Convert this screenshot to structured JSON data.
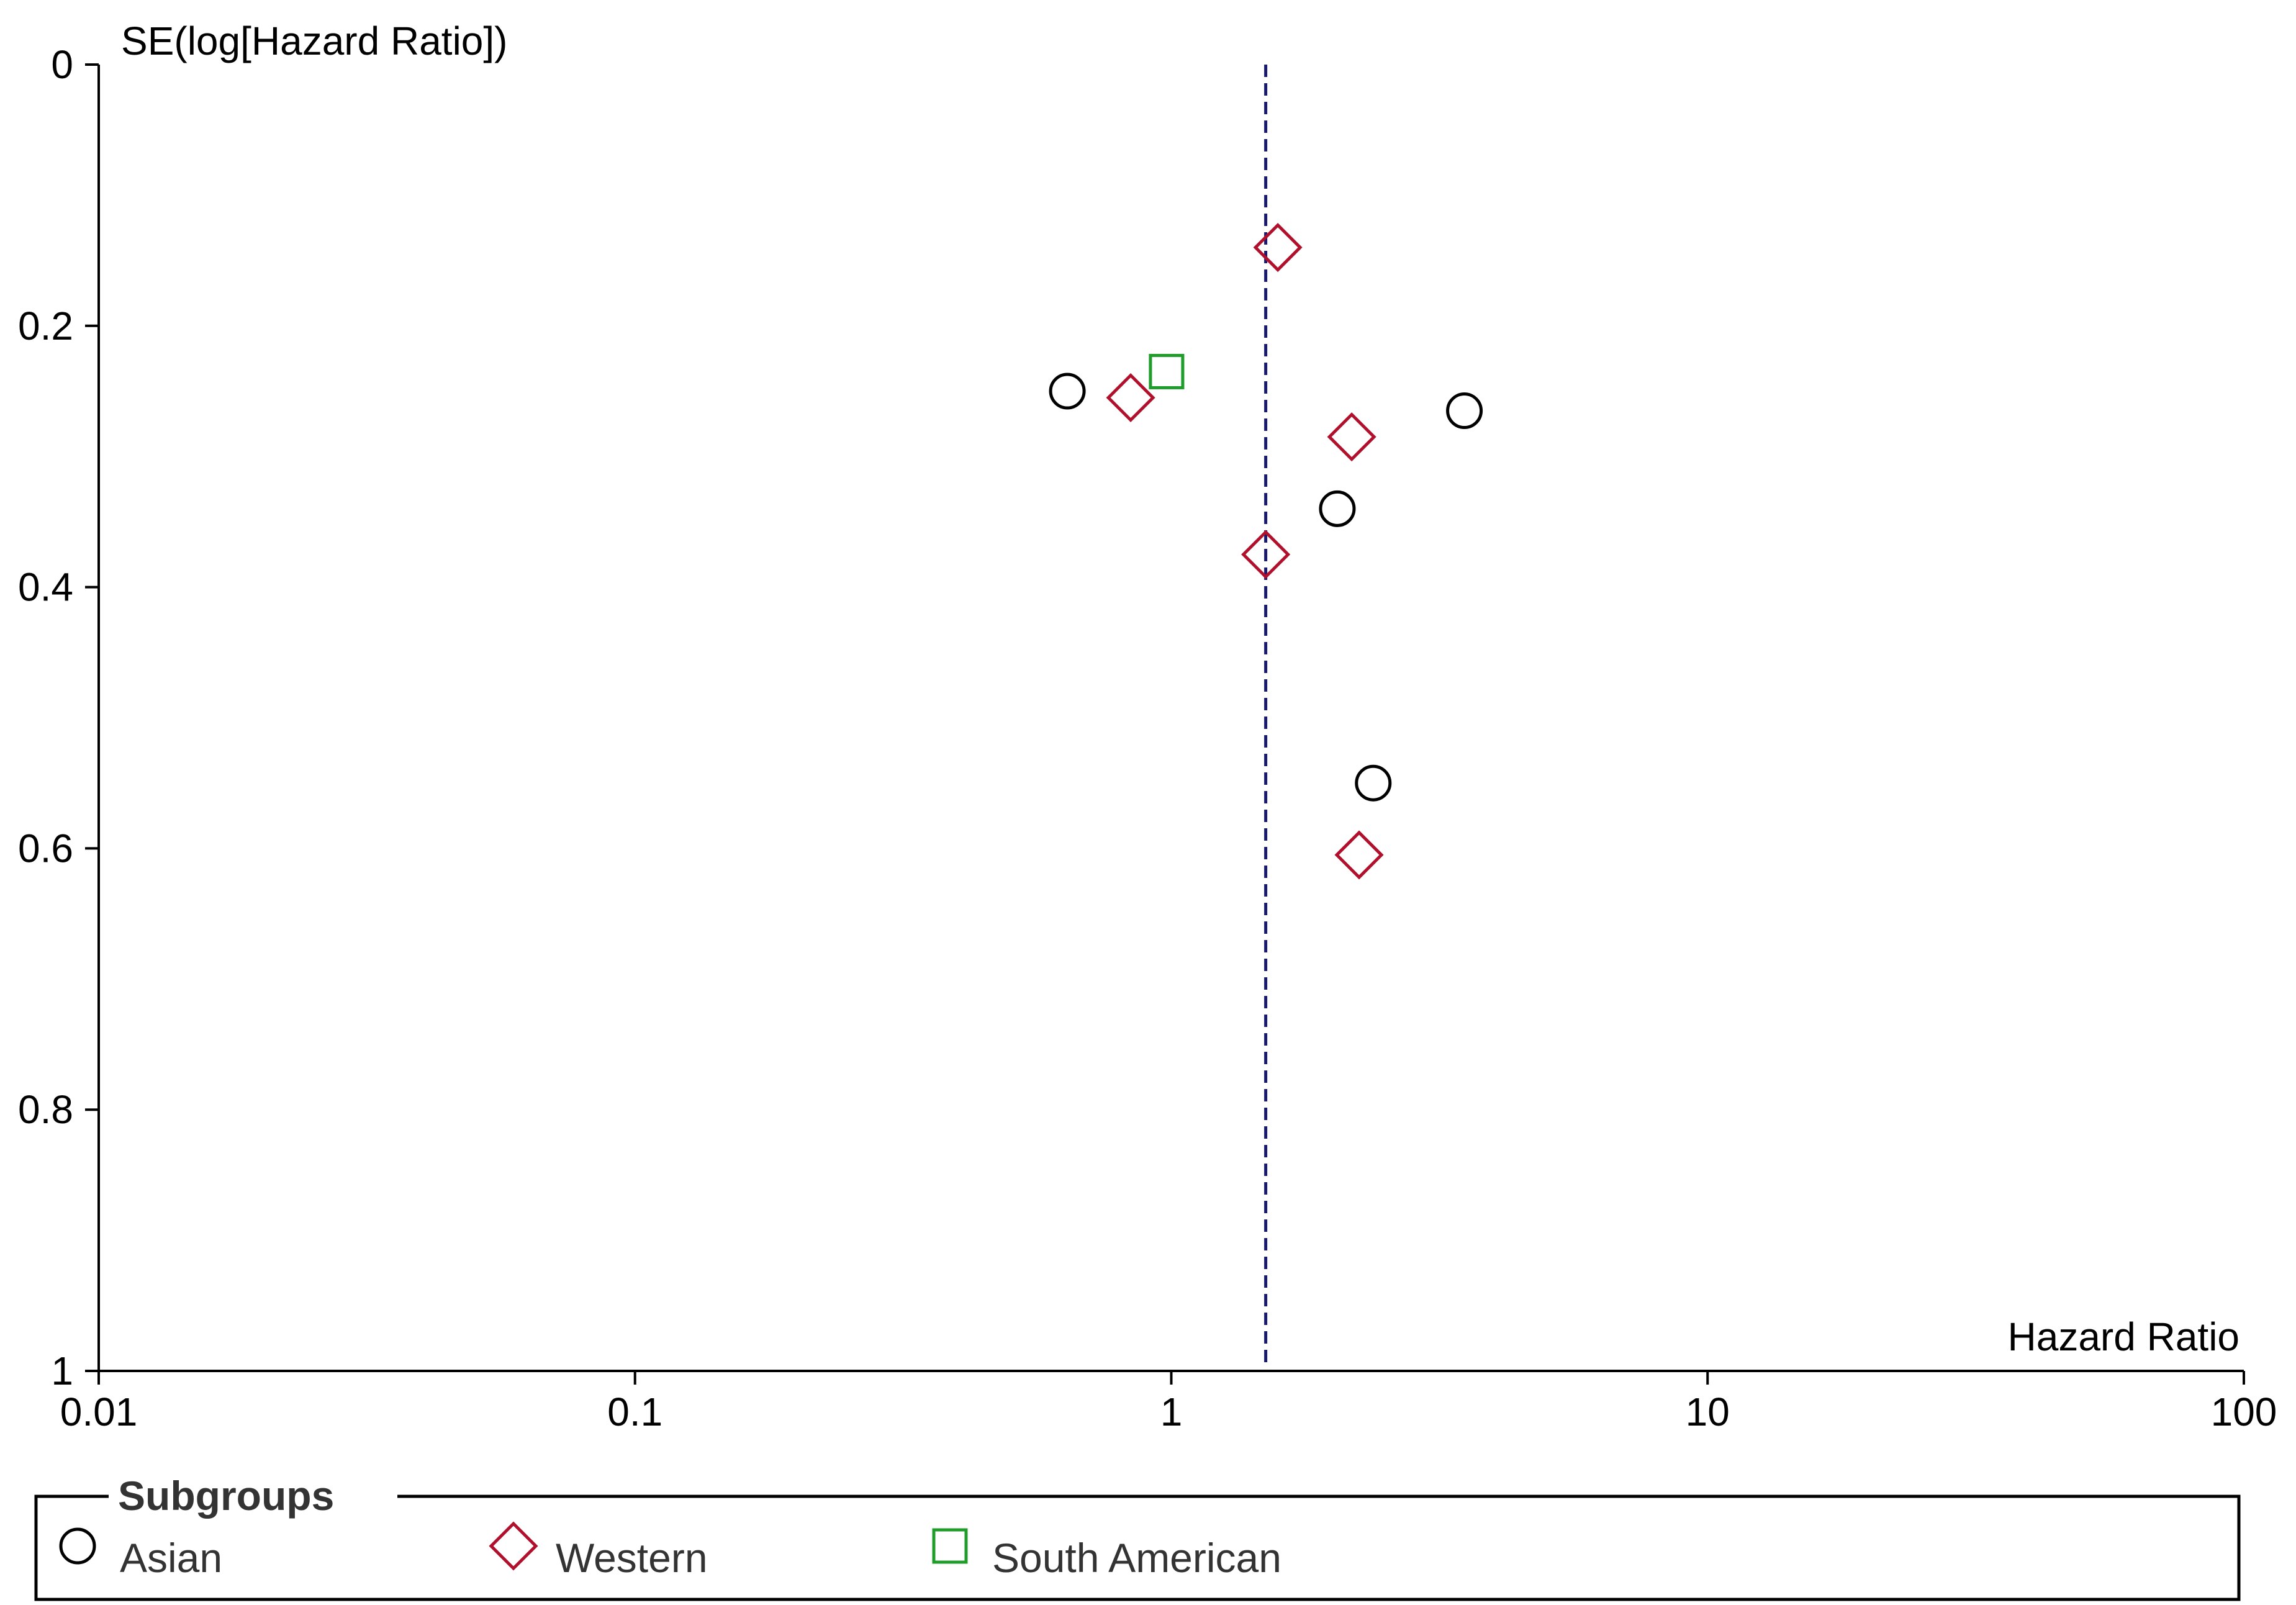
{
  "chart_data": {
    "type": "scatter",
    "title": "",
    "xlabel": "Hazard Ratio",
    "ylabel": "SE(log[Hazard Ratio])",
    "x_scale": "log",
    "xlim": [
      0.01,
      100
    ],
    "ylim": [
      0,
      1
    ],
    "y_inverted": true,
    "x_ticks": [
      "0.01",
      "0.1",
      "1",
      "10",
      "100"
    ],
    "y_ticks": [
      "0",
      "0.2",
      "0.4",
      "0.6",
      "0.8",
      "1"
    ],
    "reference_line_x": 1.5,
    "legend": {
      "title": "Subgroups",
      "placement": "bottom"
    },
    "series": [
      {
        "name": "Asian",
        "marker": "circle",
        "color": "#000000",
        "points": [
          {
            "x": 0.64,
            "y": 0.25
          },
          {
            "x": 3.52,
            "y": 0.265
          },
          {
            "x": 2.04,
            "y": 0.34
          },
          {
            "x": 2.38,
            "y": 0.55
          }
        ]
      },
      {
        "name": "Western",
        "marker": "diamond",
        "color": "#b0102c",
        "points": [
          {
            "x": 1.58,
            "y": 0.14
          },
          {
            "x": 0.84,
            "y": 0.255
          },
          {
            "x": 2.17,
            "y": 0.285
          },
          {
            "x": 1.5,
            "y": 0.375
          },
          {
            "x": 2.24,
            "y": 0.605
          }
        ]
      },
      {
        "name": "South American",
        "marker": "square",
        "color": "#1f9c2a",
        "points": [
          {
            "x": 0.98,
            "y": 0.235
          }
        ]
      }
    ]
  }
}
